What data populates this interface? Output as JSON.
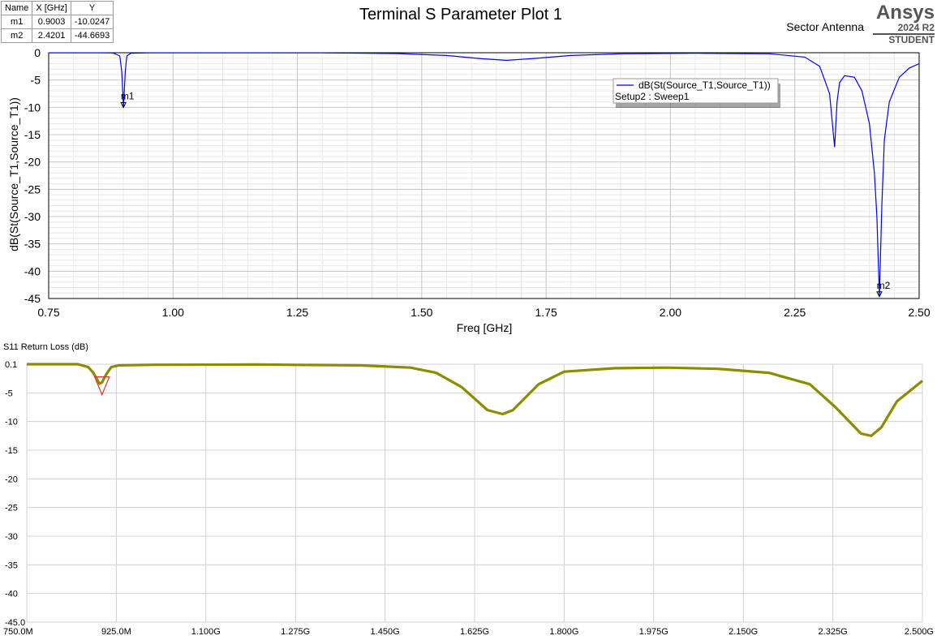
{
  "top_plot": {
    "title": "Terminal S Parameter Plot 1",
    "project": "Sector Antenna",
    "logo": {
      "brand": "Ansys",
      "release": "2024 R2",
      "edition": "STUDENT"
    },
    "marker_table": {
      "headers": [
        "Name",
        "X [GHz]",
        "Y"
      ],
      "rows": [
        [
          "m1",
          "0.9003",
          "-10.0247"
        ],
        [
          "m2",
          "2.4201",
          "-44.6693"
        ]
      ]
    },
    "legend": {
      "trace": "dB(St(Source_T1,Source_T1))",
      "setup": "Setup2 : Sweep1"
    },
    "line_color": "#0000ff"
  },
  "bottom_plot": {
    "line_color": "#8c8c00",
    "marker_color": "#e03030"
  },
  "chart_data": [
    {
      "type": "line",
      "title": "Terminal S Parameter Plot 1",
      "xlabel": "Freq [GHz]",
      "ylabel": "dB(St(Source_T1,Source_T1))",
      "xlim": [
        0.75,
        2.5
      ],
      "ylim": [
        -45,
        0
      ],
      "x_ticks": [
        "0.75",
        "1.00",
        "1.25",
        "1.50",
        "1.75",
        "2.00",
        "2.25",
        "2.50"
      ],
      "y_ticks": [
        "0",
        "-5",
        "-10",
        "-15",
        "-20",
        "-25",
        "-30",
        "-35",
        "-40",
        "-45"
      ],
      "grid": true,
      "legend_position": "top-right",
      "series": [
        {
          "name": "dB(St(Source_T1,Source_T1))",
          "x": [
            0.75,
            0.85,
            0.88,
            0.893,
            0.897,
            0.9003,
            0.904,
            0.907,
            0.915,
            0.95,
            1.1,
            1.3,
            1.45,
            1.55,
            1.62,
            1.67,
            1.72,
            1.8,
            1.9,
            2.05,
            2.2,
            2.27,
            2.3,
            2.32,
            2.33,
            2.335,
            2.34,
            2.35,
            2.37,
            2.385,
            2.4,
            2.41,
            2.415,
            2.4201,
            2.425,
            2.43,
            2.44,
            2.46,
            2.48,
            2.5
          ],
          "y": [
            -0.01,
            -0.02,
            -0.05,
            -0.6,
            -3.5,
            -10.0247,
            -3.5,
            -0.6,
            -0.1,
            -0.02,
            -0.02,
            -0.03,
            -0.15,
            -0.5,
            -1.1,
            -1.4,
            -1.1,
            -0.5,
            -0.2,
            -0.1,
            -0.2,
            -0.8,
            -2.5,
            -7.5,
            -17.3,
            -9.0,
            -5.5,
            -4.2,
            -4.5,
            -7.0,
            -13.0,
            -22.0,
            -30.0,
            -44.6693,
            -28.0,
            -16.0,
            -9.0,
            -4.5,
            -2.8,
            -2.0
          ]
        }
      ],
      "markers": [
        {
          "name": "m1",
          "x": 0.9003,
          "y": -10.0247
        },
        {
          "name": "m2",
          "x": 2.4201,
          "y": -44.6693
        }
      ]
    },
    {
      "type": "line",
      "title": "S11 Return Loss (dB)",
      "xlim": [
        750,
        2500
      ],
      "ylim": [
        -45,
        0
      ],
      "x_ticks": [
        "750.0M",
        "925.0M",
        "1.100G",
        "1.275G",
        "1.450G",
        "1.625G",
        "1.800G",
        "1.975G",
        "2.150G",
        "2.325G",
        "2.500G"
      ],
      "y_ticks": [
        "0.1",
        "-5",
        "-10",
        "-15",
        "-20",
        "-25",
        "-30",
        "-35",
        "-40",
        "-45.0"
      ],
      "grid": true,
      "series": [
        {
          "x": [
            750,
            850,
            870,
            880,
            892,
            897,
            905,
            915,
            930,
            1000,
            1200,
            1400,
            1500,
            1550,
            1600,
            1650,
            1680,
            1700,
            1750,
            1800,
            1900,
            2000,
            2100,
            2200,
            2280,
            2330,
            2380,
            2400,
            2420,
            2450,
            2500
          ],
          "y": [
            0.0,
            0.0,
            -0.5,
            -1.5,
            -3.4,
            -3.2,
            -1.8,
            -0.5,
            -0.2,
            -0.1,
            -0.05,
            -0.2,
            -0.6,
            -1.5,
            -4.0,
            -8.0,
            -8.7,
            -8.0,
            -3.5,
            -1.3,
            -0.7,
            -0.6,
            -0.8,
            -1.5,
            -3.5,
            -7.5,
            -12.1,
            -12.5,
            -11.0,
            -6.5,
            -2.9
          ]
        }
      ],
      "markers": [
        {
          "x": 897,
          "y": -3.2
        }
      ]
    }
  ]
}
